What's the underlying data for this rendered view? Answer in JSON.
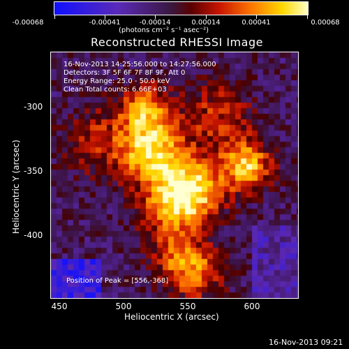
{
  "colorbar": {
    "labels": [
      "-0.00068",
      "-0.00041",
      "-0.00014",
      "0.00014",
      "0.00041",
      "0.00068"
    ],
    "units": "(photons cm⁻² s⁻¹ asec⁻²)"
  },
  "title": "Reconstructed RHESSI Image",
  "info": {
    "line1": "16-Nov-2013 14:25:56.000 to 14:27:56.000",
    "line2": "Detectors: 3F 5F 6F 7F 8F 9F, Att 0",
    "line3": "Energy Range: 25.0 - 50.0 keV",
    "line4": "Clean    Total counts: 6.66E+03",
    "peak": "Position of Peak = [556,-368]"
  },
  "axes": {
    "xlabel": "Heliocentric X (arcsec)",
    "ylabel": "Heliocentric Y (arcsec)",
    "xticks": [
      "450",
      "500",
      "550",
      "600"
    ],
    "yticks": [
      "-300",
      "-350",
      "-400"
    ]
  },
  "timestamp": "16-Nov-2013 09:21",
  "colors": {
    "background": "#000000",
    "text": "#ffffff"
  }
}
